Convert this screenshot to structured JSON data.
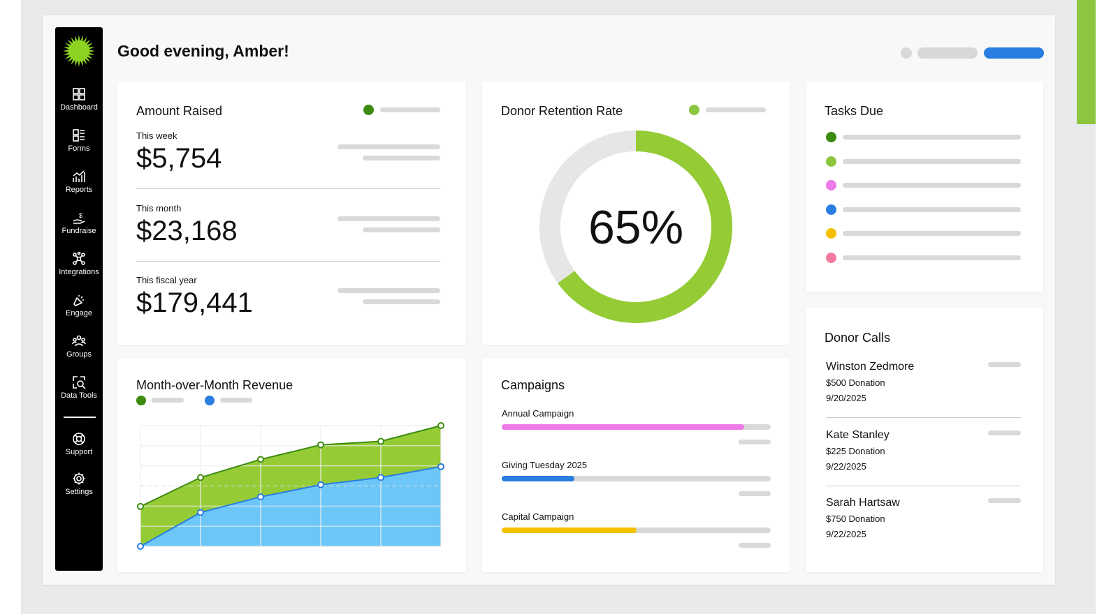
{
  "greeting": "Good evening, Amber!",
  "sidebar": {
    "items": [
      {
        "label": "Dashboard",
        "icon": "grid-icon"
      },
      {
        "label": "Forms",
        "icon": "form-list-icon"
      },
      {
        "label": "Reports",
        "icon": "chart-icon"
      },
      {
        "label": "Fundraise",
        "icon": "hand-dollar-icon"
      },
      {
        "label": "Integrations",
        "icon": "network-icon"
      },
      {
        "label": "Engage",
        "icon": "megaphone-icon"
      },
      {
        "label": "Groups",
        "icon": "people-icon"
      },
      {
        "label": "Data Tools",
        "icon": "data-search-icon"
      },
      {
        "label": "Support",
        "icon": "lifebuoy-icon"
      },
      {
        "label": "Settings",
        "icon": "gear-icon"
      }
    ]
  },
  "amount": {
    "title": "Amount Raised",
    "rows": [
      {
        "label": "This week",
        "value": "$5,754"
      },
      {
        "label": "This month",
        "value": "$23,168"
      },
      {
        "label": "This fiscal year",
        "value": "$179,441"
      }
    ]
  },
  "retention": {
    "title": "Donor Retention Rate",
    "value": "65%",
    "percent": 65
  },
  "tasks": {
    "title": "Tasks Due",
    "colors": [
      "#3d8b10",
      "#8cc63f",
      "#ee7ae8",
      "#2a7de1",
      "#f5c000",
      "#f47aa0"
    ]
  },
  "revenue": {
    "title": "Month-over-Month Revenue"
  },
  "chart_data": {
    "type": "area",
    "title": "Month-over-Month Revenue",
    "x": [
      1,
      2,
      3,
      4,
      5,
      6
    ],
    "ylim": [
      0,
      100
    ],
    "series": [
      {
        "name": "",
        "color": "#3d8b10",
        "fill": "#95cc36",
        "values": [
          33,
          57,
          72,
          84,
          87,
          100
        ]
      },
      {
        "name": "",
        "color": "#2a7de1",
        "fill": "#6cc7f8",
        "values": [
          0,
          28,
          41,
          51,
          57,
          66
        ]
      }
    ]
  },
  "campaigns": {
    "title": "Campaigns",
    "items": [
      {
        "name": "Annual Campaign",
        "progress": 90,
        "color": "#ee7ae8"
      },
      {
        "name": "Giving Tuesday 2025",
        "progress": 27,
        "color": "#2a7de1"
      },
      {
        "name": "Capital Campaign",
        "progress": 50,
        "color": "#f5c000"
      }
    ]
  },
  "calls": {
    "title": "Donor Calls",
    "items": [
      {
        "name": "Winston Zedmore",
        "amount": "$500 Donation",
        "date": "9/20/2025"
      },
      {
        "name": "Kate Stanley",
        "amount": "$225 Donation",
        "date": "9/22/2025"
      },
      {
        "name": "Sarah Hartsaw",
        "amount": "$750 Donation",
        "date": "9/22/2025"
      }
    ]
  }
}
